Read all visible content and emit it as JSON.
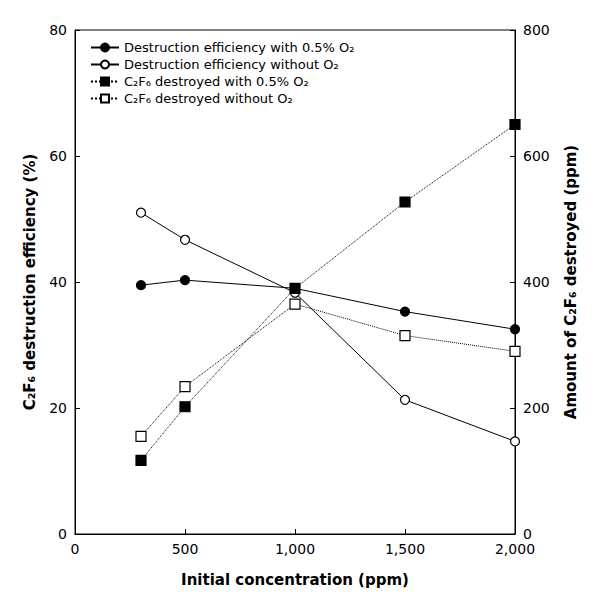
{
  "chart_data": {
    "type": "line",
    "xlabel": "Initial concentration (ppm)",
    "ylabel": "C₂F₆ destruction efficiency (%)",
    "y2label": "Amount of C₂F₆ destroyed (ppm)",
    "x": [
      300,
      500,
      1000,
      1500,
      2000
    ],
    "xlim": [
      0,
      2000
    ],
    "xticks": [
      0,
      500,
      1000,
      1500,
      2000
    ],
    "ylim": [
      0,
      80
    ],
    "yticks": [
      0,
      20,
      40,
      60,
      80
    ],
    "y2lim": [
      0,
      800
    ],
    "y2ticks": [
      0,
      200,
      400,
      600,
      800
    ],
    "grid": false,
    "legend": "upper left",
    "series": [
      {
        "name": "Destruction efficiency with 0.5% O₂",
        "color": "#000000",
        "marker": "circle",
        "line_style": "solid",
        "axis": "y",
        "values": [
          39.5,
          40.3,
          39.0,
          35.3,
          32.5
        ]
      },
      {
        "name": "Destruction efficiency without O₂",
        "color": "#000000",
        "marker": "circle-open",
        "line_style": "solid",
        "axis": "y",
        "values": [
          51.0,
          46.7,
          38.3,
          21.3,
          14.7
        ]
      },
      {
        "name": "C₂F₆ destroyed with 0.5% O₂",
        "color": "#000000",
        "marker": "square",
        "line_style": "dotted",
        "axis": "y2",
        "values": [
          117,
          202,
          390,
          527,
          650
        ]
      },
      {
        "name": "C₂F₆ destroyed without O₂",
        "color": "#000000",
        "marker": "square-open",
        "line_style": "dotted",
        "axis": "y2",
        "values": [
          155,
          234,
          365,
          315,
          290
        ]
      }
    ]
  }
}
